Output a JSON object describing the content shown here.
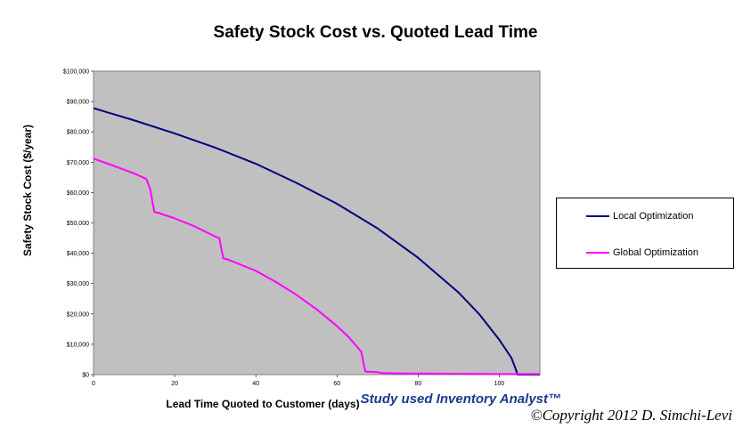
{
  "chart_data": {
    "type": "line",
    "title": "Safety Stock Cost vs. Quoted Lead Time",
    "xlabel": "Lead Time Quoted to Customer (days)",
    "ylabel": "Safety Stock Cost ($/year)",
    "xlim": [
      0,
      110
    ],
    "ylim": [
      0,
      100000
    ],
    "x_ticks": [
      "0",
      "20",
      "40",
      "60",
      "80",
      "100"
    ],
    "y_ticks": [
      "$0",
      "$10,000",
      "$20,000",
      "$30,000",
      "$40,000",
      "$50,000",
      "$60,000",
      "$70,000",
      "$80,000",
      "$90,000",
      "$100,000"
    ],
    "grid": false,
    "background": "#c0c0c0",
    "legend_position": "right",
    "series": [
      {
        "name": "Local Optimization",
        "color": "#000080",
        "points": [
          [
            0,
            87800
          ],
          [
            10,
            83800
          ],
          [
            20,
            79500
          ],
          [
            30,
            74800
          ],
          [
            40,
            69500
          ],
          [
            50,
            63200
          ],
          [
            60,
            56300
          ],
          [
            70,
            48200
          ],
          [
            80,
            38500
          ],
          [
            90,
            27000
          ],
          [
            95,
            20000
          ],
          [
            100,
            11500
          ],
          [
            103,
            5500
          ],
          [
            104,
            2000
          ],
          [
            104.5,
            0
          ],
          [
            110,
            0
          ]
        ]
      },
      {
        "name": "Global Optimization",
        "color": "#ff00ff",
        "points": [
          [
            0,
            71200
          ],
          [
            5,
            68800
          ],
          [
            10,
            66300
          ],
          [
            13,
            64500
          ],
          [
            14,
            61000
          ],
          [
            14.5,
            57000
          ],
          [
            15,
            53600
          ],
          [
            16,
            53300
          ],
          [
            20,
            51500
          ],
          [
            25,
            48800
          ],
          [
            30,
            45500
          ],
          [
            31,
            45000
          ],
          [
            31.5,
            41500
          ],
          [
            32,
            38300
          ],
          [
            33,
            38000
          ],
          [
            40,
            34200
          ],
          [
            45,
            30500
          ],
          [
            50,
            26300
          ],
          [
            55,
            21500
          ],
          [
            60,
            16000
          ],
          [
            63,
            12200
          ],
          [
            66,
            7500
          ],
          [
            66.5,
            4000
          ],
          [
            67,
            1000
          ],
          [
            70,
            800
          ],
          [
            71,
            500
          ],
          [
            75,
            400
          ],
          [
            90,
            300
          ],
          [
            100,
            200
          ],
          [
            110,
            200
          ]
        ]
      }
    ]
  },
  "footer": {
    "note": "Study used Inventory Analyst™",
    "copyright": "©Copyright 2012 D. Simchi-Levi"
  }
}
